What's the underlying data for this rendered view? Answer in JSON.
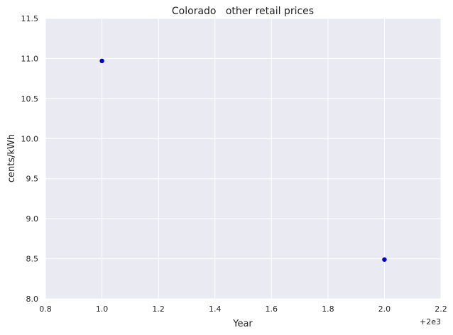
{
  "chart_data": {
    "type": "scatter",
    "title": "Colorado   other retail prices",
    "xlabel": "Year",
    "ylabel": "cents/kWh",
    "x_offset_label": "+2e3",
    "xlim": [
      0.8,
      2.2
    ],
    "ylim": [
      8.0,
      11.5
    ],
    "x_ticks": [
      0.8,
      1.0,
      1.2,
      1.4,
      1.6,
      1.8,
      2.0,
      2.2
    ],
    "x_tick_labels": [
      "0.8",
      "1.0",
      "1.2",
      "1.4",
      "1.6",
      "1.8",
      "2.0",
      "2.2"
    ],
    "y_ticks": [
      8.0,
      8.5,
      9.0,
      9.5,
      10.0,
      10.5,
      11.0,
      11.5
    ],
    "y_tick_labels": [
      "8.0",
      "8.5",
      "9.0",
      "9.5",
      "10.0",
      "10.5",
      "11.0",
      "11.5"
    ],
    "grid": true,
    "series": [
      {
        "x": [
          1.0,
          2.0
        ],
        "y": [
          10.97,
          8.49
        ],
        "color": "#0000cc"
      }
    ],
    "style": {
      "plot_background": "#eaeaf2",
      "grid_color": "#ffffff"
    }
  }
}
